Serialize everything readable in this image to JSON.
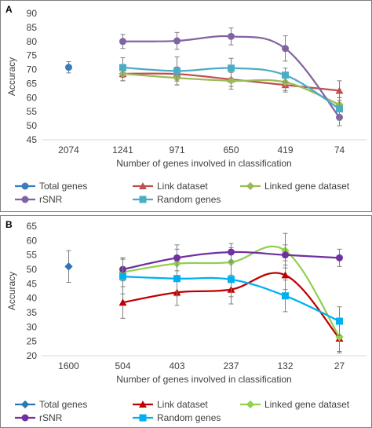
{
  "chart_data": [
    {
      "panel_label": "A",
      "type": "line",
      "categories": [
        "2074",
        "1241",
        "971",
        "650",
        "419",
        "74"
      ],
      "xlabel": "Number of genes involved in classification",
      "ylabel": "Accuracy",
      "ylim": [
        45,
        90
      ],
      "yticks": [
        "45",
        "50",
        "55",
        "60",
        "65",
        "70",
        "75",
        "80",
        "85",
        "90"
      ],
      "grid": false,
      "legend_position": "bottom",
      "series": [
        {
          "name": "Total genes",
          "color": "#3a7cc0",
          "marker": "circle",
          "values": [
            70.8,
            null,
            null,
            null,
            null,
            null
          ],
          "errors": [
            2,
            null,
            null,
            null,
            null,
            null
          ]
        },
        {
          "name": "Link dataset",
          "color": "#c0504d",
          "marker": "triangle",
          "values": [
            null,
            68.5,
            68.4,
            66.5,
            64.5,
            62.5
          ],
          "errors": [
            null,
            2.5,
            2.5,
            2.5,
            2.5,
            3.5
          ]
        },
        {
          "name": "Linked gene dataset",
          "color": "#9bbb59",
          "marker": "diamond",
          "values": [
            null,
            68.5,
            67.0,
            66.0,
            65.5,
            57.5
          ],
          "errors": [
            null,
            2.5,
            2.5,
            3.0,
            3.0,
            2.5
          ]
        },
        {
          "name": "rSNR",
          "color": "#8064a2",
          "marker": "circle",
          "values": [
            null,
            80.0,
            80.2,
            81.8,
            77.5,
            53.0
          ],
          "errors": [
            null,
            2.5,
            3.0,
            3.0,
            4.5,
            3.0
          ]
        },
        {
          "name": "Random genes",
          "color": "#4bacc6",
          "marker": "square",
          "values": [
            null,
            70.7,
            69.5,
            70.5,
            68.0,
            56.0
          ],
          "errors": [
            null,
            3.5,
            5.0,
            3.5,
            2.5,
            4.0
          ]
        }
      ]
    },
    {
      "panel_label": "B",
      "type": "line",
      "categories": [
        "1600",
        "504",
        "403",
        "237",
        "132",
        "27"
      ],
      "xlabel": "Number of genes involved in classification",
      "ylabel": "Accuracy",
      "ylim": [
        20,
        65
      ],
      "yticks": [
        "20",
        "25",
        "30",
        "35",
        "40",
        "45",
        "50",
        "55",
        "60",
        "65"
      ],
      "grid": false,
      "legend_position": "bottom",
      "series": [
        {
          "name": "Total genes",
          "color": "#2e75b6",
          "marker": "diamond",
          "values": [
            51.0,
            null,
            null,
            null,
            null,
            null
          ],
          "errors": [
            5.5,
            null,
            null,
            null,
            null,
            null
          ]
        },
        {
          "name": "Link dataset",
          "color": "#c00000",
          "marker": "triangle",
          "values": [
            null,
            38.5,
            42.0,
            43.0,
            48.0,
            26.0
          ],
          "errors": [
            null,
            5.5,
            4.5,
            5.0,
            5.0,
            5.0
          ]
        },
        {
          "name": "Linked gene dataset",
          "color": "#92d050",
          "marker": "diamond",
          "values": [
            null,
            49.0,
            52.0,
            52.5,
            56.5,
            26.5
          ],
          "errors": [
            null,
            5.0,
            5.0,
            5.0,
            6.0,
            5.0
          ]
        },
        {
          "name": "rSNR",
          "color": "#7030a0",
          "marker": "circle",
          "values": [
            null,
            50.0,
            54.0,
            56.0,
            55.0,
            54.0
          ],
          "errors": [
            null,
            4.0,
            4.5,
            3.0,
            3.5,
            3.0
          ]
        },
        {
          "name": "Random genes",
          "color": "#00b0f0",
          "marker": "square",
          "values": [
            null,
            47.5,
            46.8,
            46.5,
            40.8,
            32.0
          ],
          "errors": [
            null,
            6.0,
            6.0,
            6.0,
            5.5,
            5.0
          ]
        }
      ]
    }
  ]
}
